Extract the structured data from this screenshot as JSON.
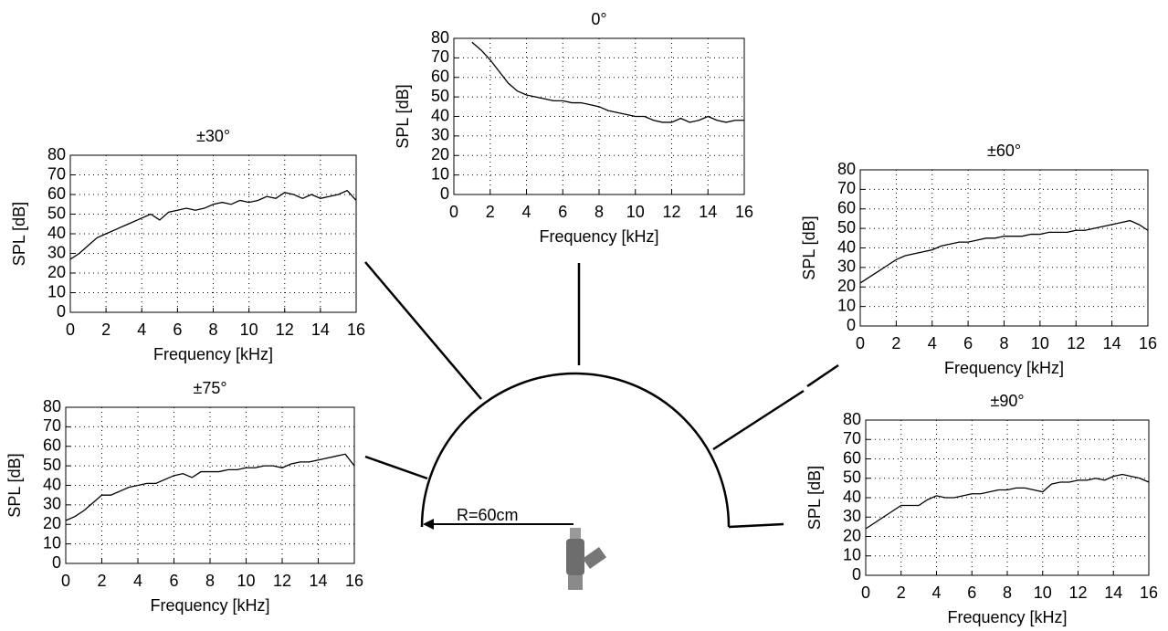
{
  "chart_data": [
    {
      "type": "line",
      "title": "0°",
      "xlabel": "Frequency [kHz]",
      "ylabel": "SPL [dB]",
      "grid": true,
      "color": "#000000",
      "xlim": [
        0,
        16
      ],
      "ylim": [
        0,
        80
      ],
      "xticks": [
        0,
        2,
        4,
        6,
        8,
        10,
        12,
        14,
        16
      ],
      "yticks": [
        0,
        10,
        20,
        30,
        40,
        50,
        60,
        70,
        80
      ],
      "x": [
        1,
        1.5,
        2,
        2.5,
        3,
        3.5,
        4,
        4.5,
        5,
        5.5,
        6,
        6.5,
        7,
        7.5,
        8,
        8.5,
        9,
        9.5,
        10,
        10.5,
        11,
        11.5,
        12,
        12.5,
        13,
        13.5,
        14,
        14.5,
        15,
        15.5,
        16
      ],
      "values": [
        78,
        74,
        69,
        63,
        57,
        53,
        51,
        50,
        49,
        48,
        48,
        47,
        47,
        46,
        45,
        43,
        42,
        41,
        40,
        40,
        38,
        37,
        37,
        39,
        37,
        38,
        40,
        38,
        37,
        38,
        38
      ]
    },
    {
      "type": "line",
      "title": "±30°",
      "xlabel": "Frequency [kHz]",
      "ylabel": "SPL [dB]",
      "grid": true,
      "color": "#000000",
      "xlim": [
        0,
        16
      ],
      "ylim": [
        0,
        80
      ],
      "xticks": [
        0,
        2,
        4,
        6,
        8,
        10,
        12,
        14,
        16
      ],
      "yticks": [
        0,
        10,
        20,
        30,
        40,
        50,
        60,
        70,
        80
      ],
      "x": [
        0,
        0.5,
        1,
        1.5,
        2,
        2.5,
        3,
        3.5,
        4,
        4.5,
        5,
        5.5,
        6,
        6.5,
        7,
        7.5,
        8,
        8.5,
        9,
        9.5,
        10,
        10.5,
        11,
        11.5,
        12,
        12.5,
        13,
        13.5,
        14,
        14.5,
        15,
        15.5,
        16
      ],
      "values": [
        27,
        30,
        34,
        38,
        40,
        42,
        44,
        46,
        48,
        50,
        47,
        51,
        52,
        53,
        52,
        53,
        55,
        56,
        55,
        57,
        56,
        57,
        59,
        58,
        61,
        60,
        58,
        60,
        58,
        59,
        60,
        62,
        57
      ]
    },
    {
      "type": "line",
      "title": "±60°",
      "xlabel": "Frequency [kHz]",
      "ylabel": "SPL [dB]",
      "grid": true,
      "color": "#000000",
      "xlim": [
        0,
        16
      ],
      "ylim": [
        0,
        80
      ],
      "xticks": [
        0,
        2,
        4,
        6,
        8,
        10,
        12,
        14,
        16
      ],
      "yticks": [
        0,
        10,
        20,
        30,
        40,
        50,
        60,
        70,
        80
      ],
      "x": [
        0,
        0.5,
        1,
        1.5,
        2,
        2.5,
        3,
        3.5,
        4,
        4.5,
        5,
        5.5,
        6,
        6.5,
        7,
        7.5,
        8,
        8.5,
        9,
        9.5,
        10,
        10.5,
        11,
        11.5,
        12,
        12.5,
        13,
        13.5,
        14,
        14.5,
        15,
        15.5,
        16
      ],
      "values": [
        22,
        25,
        28,
        31,
        34,
        36,
        37,
        38,
        39,
        41,
        42,
        43,
        43,
        44,
        45,
        45,
        46,
        46,
        46,
        47,
        47,
        48,
        48,
        48,
        49,
        49,
        50,
        51,
        52,
        53,
        54,
        52,
        49
      ]
    },
    {
      "type": "line",
      "title": "±75°",
      "xlabel": "Frequency [kHz]",
      "ylabel": "SPL [dB]",
      "grid": true,
      "color": "#000000",
      "xlim": [
        0,
        16
      ],
      "ylim": [
        0,
        80
      ],
      "xticks": [
        0,
        2,
        4,
        6,
        8,
        10,
        12,
        14,
        16
      ],
      "yticks": [
        0,
        10,
        20,
        30,
        40,
        50,
        60,
        70,
        80
      ],
      "x": [
        0,
        0.5,
        1,
        1.5,
        2,
        2.5,
        3,
        3.5,
        4,
        4.5,
        5,
        5.5,
        6,
        6.5,
        7,
        7.5,
        8,
        8.5,
        9,
        9.5,
        10,
        10.5,
        11,
        11.5,
        12,
        12.5,
        13,
        13.5,
        14,
        14.5,
        15,
        15.5,
        16
      ],
      "values": [
        22,
        24,
        27,
        31,
        35,
        35,
        37,
        39,
        40,
        41,
        41,
        43,
        45,
        46,
        44,
        47,
        47,
        47,
        48,
        48,
        49,
        49,
        50,
        50,
        49,
        51,
        52,
        52,
        53,
        54,
        55,
        56,
        50
      ]
    },
    {
      "type": "line",
      "title": "±90°",
      "xlabel": "Frequency [kHz]",
      "ylabel": "SPL [dB]",
      "grid": true,
      "color": "#000000",
      "xlim": [
        0,
        16
      ],
      "ylim": [
        0,
        80
      ],
      "xticks": [
        0,
        2,
        4,
        6,
        8,
        10,
        12,
        14,
        16
      ],
      "yticks": [
        0,
        10,
        20,
        30,
        40,
        50,
        60,
        70,
        80
      ],
      "x": [
        0,
        0.5,
        1,
        1.5,
        2,
        2.5,
        3,
        3.5,
        4,
        4.5,
        5,
        5.5,
        6,
        6.5,
        7,
        7.5,
        8,
        8.5,
        9,
        9.5,
        10,
        10.5,
        11,
        11.5,
        12,
        12.5,
        13,
        13.5,
        14,
        14.5,
        15,
        15.5,
        16
      ],
      "values": [
        24,
        27,
        30,
        33,
        36,
        36,
        36,
        39,
        41,
        40,
        40,
        41,
        42,
        42,
        43,
        44,
        44,
        45,
        45,
        44,
        43,
        47,
        48,
        48,
        49,
        49,
        50,
        49,
        51,
        52,
        51,
        50,
        48
      ]
    }
  ],
  "diagram": {
    "radius_label": "R=60cm"
  }
}
